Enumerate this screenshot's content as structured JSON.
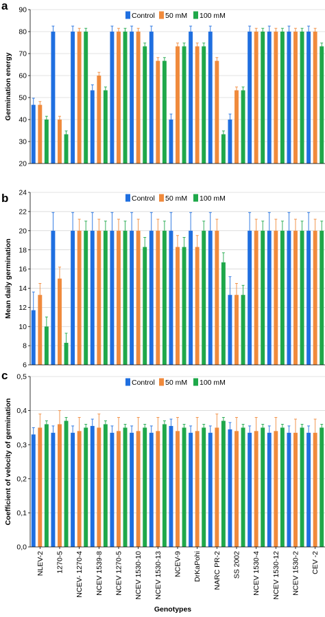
{
  "figure": {
    "x_axis_title": "Genotypes",
    "genotype_labels": [
      "NLEV-2",
      "1270-5",
      "NCEV- 1270-4",
      "NCEV 1539-8",
      "NCEV 1270-5",
      "NCEV 1530-10",
      "NCEV 1530-13",
      "NCEV-9",
      "DrKaPohi",
      "NARC PR-2",
      "SS 2002",
      "NCEV 1530-4",
      "NCEV 1530-12",
      "NCEV 1530-2",
      "CEV -2"
    ],
    "series_colors": {
      "Control": "#1f6fe0",
      "50 mM": "#f08a3c",
      "100 mM": "#1fa84a"
    }
  },
  "chart_data": [
    {
      "panel": "a",
      "type": "bar",
      "ylabel": "Germination energy",
      "ylim": [
        20,
        90
      ],
      "yticks": [
        20,
        30,
        40,
        50,
        60,
        70,
        80,
        90
      ],
      "ytick_labels": [
        "20",
        "30",
        "40",
        "50",
        "60",
        "70",
        "80",
        "90"
      ],
      "grid": true,
      "legend": {
        "placement": "top-center",
        "entries": [
          "Control",
          "50 mM",
          "100 mM"
        ]
      },
      "n_bars": 45,
      "series": [
        {
          "name": "Control",
          "values": [
            46.7,
            80,
            80,
            53.3,
            80,
            80,
            80,
            40,
            80,
            80,
            40,
            80,
            80,
            80,
            80
          ]
        },
        {
          "name": "50 mM",
          "values": [
            46.7,
            40,
            80,
            60,
            80,
            80,
            66.7,
            73.3,
            73.3,
            66.7,
            53.3,
            80,
            80,
            80,
            80
          ]
        },
        {
          "name": "100 mM",
          "values": [
            40,
            33.3,
            80,
            53.3,
            80,
            73.3,
            66.7,
            73.3,
            73.3,
            33.3,
            53.3,
            80,
            80,
            80,
            73.3
          ]
        }
      ],
      "errors": [
        [
          3,
          2.5,
          2.5,
          2.5,
          2.5,
          2.5,
          2.5,
          2.5,
          2.5,
          2.5,
          2.5,
          2.5,
          2.5,
          2.5,
          2.5
        ],
        [
          1.5,
          1.5,
          1.5,
          1.5,
          1.5,
          1.5,
          1.5,
          1.5,
          1.5,
          1.5,
          1.5,
          1.5,
          1.5,
          1.5,
          1.5
        ],
        [
          1.5,
          1.5,
          1.5,
          1.5,
          1.5,
          1.5,
          1.5,
          1.5,
          1.5,
          1.5,
          1.5,
          1.5,
          1.5,
          1.5,
          1.5
        ]
      ]
    },
    {
      "panel": "b",
      "type": "bar",
      "ylabel": "Mean daily germination",
      "ylim": [
        6,
        24
      ],
      "yticks": [
        6,
        8,
        10,
        12,
        14,
        16,
        18,
        20,
        22,
        24
      ],
      "ytick_labels": [
        "6",
        "8",
        "10",
        "12",
        "14",
        "16",
        "18",
        "20",
        "22",
        "24"
      ],
      "grid": true,
      "legend": {
        "placement": "top-center",
        "entries": [
          "Control",
          "50 mM",
          "100 mM"
        ]
      },
      "n_bars": 45,
      "series": [
        {
          "name": "Control",
          "values": [
            11.7,
            20,
            20,
            20,
            20,
            20,
            20,
            20,
            20,
            20,
            13.3,
            20,
            20,
            20,
            20
          ]
        },
        {
          "name": "50 mM",
          "values": [
            13.3,
            15,
            20,
            20,
            20,
            20,
            20,
            18.3,
            18.3,
            20,
            13.3,
            20,
            20,
            20,
            20
          ]
        },
        {
          "name": "100 mM",
          "values": [
            10,
            8.3,
            20,
            20,
            20,
            18.3,
            20,
            18.3,
            20,
            16.7,
            13.3,
            20,
            20,
            20,
            20
          ]
        }
      ],
      "errors": [
        [
          1.9,
          1.9,
          1.9,
          1.9,
          1.9,
          1.9,
          1.9,
          1.9,
          1.9,
          1.9,
          1.9,
          1.9,
          1.9,
          1.9,
          1.9
        ],
        [
          1.2,
          1.2,
          1.2,
          1.2,
          1.2,
          1.2,
          1.2,
          1.2,
          1.2,
          1.2,
          1.2,
          1.2,
          1.2,
          1.2,
          1.2
        ],
        [
          1.0,
          1.0,
          1.0,
          1.0,
          1.0,
          1.0,
          1.0,
          1.0,
          1.0,
          1.0,
          1.0,
          1.0,
          1.0,
          1.0,
          1.0
        ]
      ]
    },
    {
      "panel": "c",
      "type": "bar",
      "ylabel": "Coefficient of velocity of germination",
      "ylim": [
        0,
        0.5
      ],
      "yticks": [
        0,
        0.1,
        0.2,
        0.3,
        0.4,
        0.5
      ],
      "ytick_labels": [
        "0,0",
        "0,1",
        "0,2",
        "0,3",
        "0,4",
        "0,5"
      ],
      "grid": true,
      "legend": {
        "placement": "top-center",
        "entries": [
          "Control",
          "50 mM",
          "100 mM"
        ]
      },
      "n_bars": 45,
      "series": [
        {
          "name": "Control",
          "values": [
            0.33,
            0.335,
            0.335,
            0.355,
            0.335,
            0.335,
            0.335,
            0.355,
            0.335,
            0.335,
            0.345,
            0.335,
            0.335,
            0.335,
            0.335
          ]
        },
        {
          "name": "50 mM",
          "values": [
            0.35,
            0.36,
            0.34,
            0.35,
            0.34,
            0.34,
            0.34,
            0.34,
            0.34,
            0.35,
            0.34,
            0.34,
            0.34,
            0.335,
            0.335
          ]
        },
        {
          "name": "100 mM",
          "values": [
            0.36,
            0.37,
            0.35,
            0.36,
            0.35,
            0.35,
            0.36,
            0.35,
            0.35,
            0.37,
            0.35,
            0.35,
            0.35,
            0.35,
            0.35
          ]
        }
      ],
      "errors": [
        [
          0.02,
          0.02,
          0.02,
          0.02,
          0.02,
          0.02,
          0.02,
          0.02,
          0.02,
          0.02,
          0.02,
          0.02,
          0.02,
          0.02,
          0.02
        ],
        [
          0.04,
          0.04,
          0.04,
          0.04,
          0.04,
          0.04,
          0.04,
          0.04,
          0.04,
          0.04,
          0.04,
          0.04,
          0.04,
          0.04,
          0.04
        ],
        [
          0.01,
          0.01,
          0.01,
          0.01,
          0.01,
          0.01,
          0.01,
          0.01,
          0.01,
          0.01,
          0.01,
          0.01,
          0.01,
          0.01,
          0.01
        ]
      ]
    }
  ]
}
